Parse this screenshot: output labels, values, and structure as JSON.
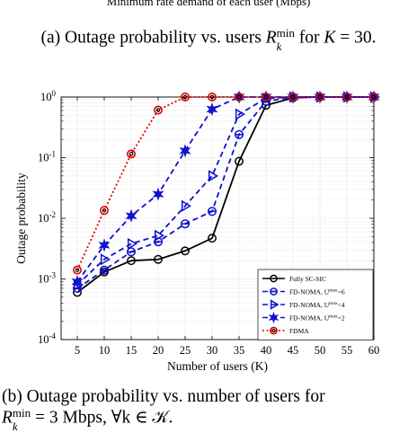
{
  "page": {
    "top_clipped_label": "Minimum rate demand of each user (Mbps)",
    "caption_a": {
      "prefix": "(a) Outage probability vs. users ",
      "symbol": "R",
      "sup": "min",
      "sub": "k",
      "mid": " for ",
      "var": "K",
      "suffix": " = 30."
    },
    "caption_b": {
      "line1": "(b) Outage probability vs. number of users for",
      "symbol": "R",
      "sup": "min",
      "sub": "k",
      "rest": " = 3 Mbps, ∀k ∈ 𝒦."
    }
  },
  "colors": {
    "fully_sc_sic": "#000000",
    "fd_noma": "#1010d0",
    "fdma": "#dd0000",
    "grid": "#d9d9d9"
  },
  "chart_data": {
    "type": "line",
    "xlabel": "Number of users (K)",
    "ylabel": "Outage probability",
    "x": [
      5,
      10,
      15,
      20,
      25,
      30,
      35,
      40,
      45,
      50,
      55,
      60
    ],
    "xlim": [
      2,
      60
    ],
    "ylim": [
      0.0001,
      1
    ],
    "yscale": "log",
    "ytick_labels": [
      "10-4",
      "10-3",
      "10-2",
      "10-1",
      "100"
    ],
    "grid": true,
    "legend_position": "bottom-right",
    "series": [
      {
        "name": "Fully SC-SIC",
        "marker": "circle",
        "style": "solid",
        "color_key": "fully_sc_sic",
        "values": [
          0.0006,
          0.0013,
          0.002,
          0.0021,
          0.0029,
          0.0047,
          0.087,
          0.73,
          0.97,
          1.0,
          1.0,
          1.0
        ]
      },
      {
        "name": "FD-NOMA, U",
        "name_sup": "max",
        "name_suffix": "=6",
        "marker": "theta",
        "style": "dashed",
        "color_key": "fd_noma",
        "values": [
          0.0007,
          0.0014,
          0.0028,
          0.0041,
          0.0081,
          0.013,
          0.24,
          0.85,
          1.0,
          1.0,
          1.0,
          1.0
        ]
      },
      {
        "name": "FD-NOMA, U",
        "name_sup": "max",
        "name_suffix": "=4",
        "marker": "triangle-right",
        "style": "dashed",
        "color_key": "fd_noma",
        "values": [
          0.0008,
          0.0021,
          0.0038,
          0.0052,
          0.016,
          0.05,
          0.52,
          0.95,
          1.0,
          1.0,
          1.0,
          1.0
        ]
      },
      {
        "name": "FD-NOMA, U",
        "name_sup": "max",
        "name_suffix": "=2",
        "marker": "hexagram",
        "style": "dashed",
        "color_key": "fd_noma",
        "values": [
          0.0009,
          0.0036,
          0.011,
          0.025,
          0.13,
          0.63,
          1.0,
          1.0,
          1.0,
          1.0,
          1.0,
          1.0
        ]
      },
      {
        "name": "FDMA",
        "marker": "circle-dot",
        "style": "dotted",
        "color_key": "fdma",
        "values": [
          0.0014,
          0.0135,
          0.115,
          0.61,
          1.0,
          1.0,
          1.0,
          1.0,
          1.0,
          1.0,
          1.0,
          1.0
        ]
      }
    ]
  }
}
